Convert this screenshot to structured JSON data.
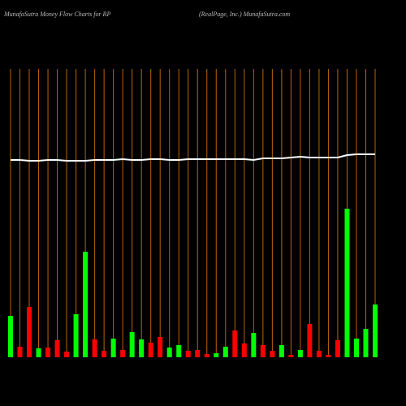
{
  "chart_data": {
    "type": "bar",
    "title": "MunafaSutra  Money Flow  Charts for RP",
    "subtitle": "(RealPage,  Inc.) MunafaSutra.com",
    "categories": [
      null,
      null,
      null,
      null,
      null,
      null,
      null,
      null,
      null,
      null,
      null,
      null,
      null,
      null,
      null,
      null,
      null,
      null,
      null,
      null,
      null,
      null,
      null,
      null,
      null,
      null,
      null,
      null,
      null,
      null,
      null,
      null,
      null,
      null,
      null,
      null,
      null,
      null,
      null,
      null
    ],
    "series": [
      {
        "colors": [
          "#00ff00",
          "#ff0000",
          "#ff0000",
          "#00ff00",
          "#ff0000",
          "#ff0000",
          "#ff0000",
          "#00ff00",
          "#00ff00",
          "#ff0000",
          "#ff0000",
          "#00ff00",
          "#ff0000",
          "#00ff00",
          "#00ff00",
          "#ff0000",
          "#ff0000",
          "#00ff00",
          "#00ff00",
          "#ff0000",
          "#ff0000",
          "#ff0000",
          "#00ff00",
          "#00ff00",
          "#ff0000",
          "#ff0000",
          "#00ff00",
          "#ff0000",
          "#ff0000",
          "#00ff00",
          "#ff0000",
          "#00ff00",
          "#ff0000",
          "#ff0000",
          "#ff0000",
          "#ff0000",
          "#00ff00",
          "#00ff00",
          "#00ff00",
          "#00ff00"
        ],
        "values": [
          51,
          13,
          62,
          11,
          12,
          21,
          7,
          53,
          130,
          22,
          8,
          23,
          9,
          31,
          22,
          18,
          25,
          12,
          15,
          8,
          9,
          4,
          5,
          13,
          33,
          17,
          30,
          15,
          8,
          15,
          3,
          9,
          41,
          8,
          3,
          21,
          183,
          23,
          35,
          65
        ]
      },
      {
        "type": "line",
        "color": "#ffffff",
        "values": [
          243,
          243,
          242,
          242,
          243,
          243,
          242,
          242,
          242,
          243,
          243,
          243,
          244,
          243,
          243,
          244,
          244,
          243,
          243,
          244,
          244,
          244,
          244,
          244,
          244,
          244,
          243,
          245,
          245,
          245,
          246,
          247,
          246,
          246,
          246,
          246,
          249,
          250,
          250,
          250
        ]
      }
    ],
    "grid_color": "#b8640a",
    "ylim": [
      0,
      440
    ]
  }
}
